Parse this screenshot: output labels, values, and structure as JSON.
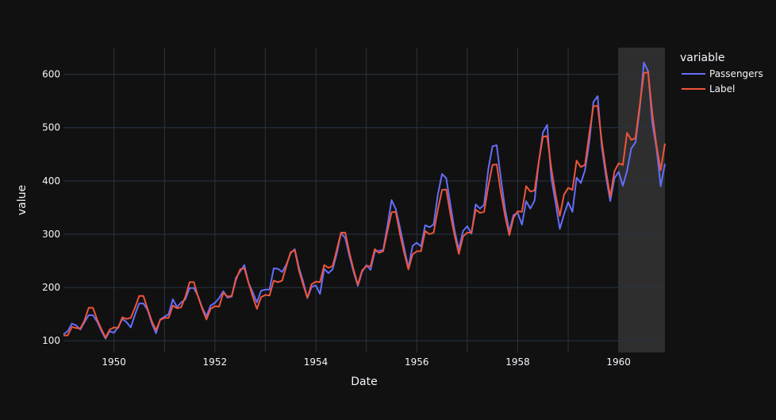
{
  "chart_data": {
    "type": "line",
    "title": "",
    "xlabel": "Date",
    "ylabel": "value",
    "xlim": [
      "1949-01",
      "1960-12"
    ],
    "ylim": [
      78,
      650
    ],
    "xticks": [
      "1950",
      "1952",
      "1954",
      "1956",
      "1958",
      "1960"
    ],
    "yticks": [
      100,
      200,
      300,
      400,
      500,
      600
    ],
    "grid": true,
    "legend": {
      "title": "variable",
      "placement": "right"
    },
    "highlight_region": {
      "start": "1960-01",
      "end": "1960-12",
      "color": "#2e2e2e"
    },
    "x_start": "1949-01",
    "x_frequency": "monthly",
    "series": [
      {
        "name": "Passengers",
        "color": "#636efa",
        "values": [
          112,
          118,
          132,
          129,
          121,
          135,
          148,
          148,
          136,
          119,
          104,
          118,
          115,
          126,
          141,
          135,
          125,
          149,
          170,
          170,
          158,
          133,
          114,
          140,
          145,
          150,
          178,
          163,
          172,
          178,
          199,
          199,
          184,
          162,
          146,
          166,
          171,
          180,
          193,
          181,
          183,
          218,
          230,
          242,
          209,
          191,
          172,
          194,
          196,
          196,
          236,
          235,
          229,
          243,
          264,
          272,
          237,
          211,
          180,
          201,
          204,
          188,
          235,
          227,
          234,
          264,
          302,
          293,
          259,
          229,
          203,
          229,
          242,
          233,
          267,
          269,
          270,
          315,
          364,
          347,
          312,
          274,
          237,
          278,
          284,
          277,
          317,
          313,
          318,
          374,
          413,
          405,
          355,
          306,
          271,
          306,
          315,
          301,
          356,
          348,
          355,
          422,
          465,
          467,
          404,
          347,
          305,
          336,
          340,
          318,
          362,
          348,
          363,
          435,
          491,
          505,
          404,
          359,
          310,
          337,
          360,
          342,
          406,
          396,
          420,
          472,
          548,
          559,
          463,
          407,
          362,
          405,
          417,
          391,
          419,
          461,
          472,
          535,
          622,
          606,
          508,
          461,
          390,
          432
        ]
      },
      {
        "name": "Label",
        "color": "#ef553b",
        "values": [
          110,
          110,
          126,
          124,
          123,
          138,
          162,
          162,
          140,
          122,
          106,
          121,
          125,
          124,
          144,
          141,
          143,
          162,
          184,
          184,
          160,
          137,
          120,
          139,
          143,
          143,
          166,
          161,
          163,
          183,
          210,
          210,
          183,
          160,
          140,
          160,
          165,
          164,
          190,
          183,
          184,
          214,
          234,
          236,
          209,
          183,
          160,
          182,
          186,
          185,
          213,
          210,
          213,
          240,
          266,
          270,
          232,
          205,
          181,
          206,
          211,
          210,
          242,
          237,
          240,
          271,
          303,
          303,
          265,
          233,
          205,
          232,
          240,
          240,
          272,
          265,
          268,
          305,
          341,
          342,
          300,
          265,
          234,
          262,
          268,
          268,
          306,
          300,
          303,
          346,
          383,
          384,
          337,
          297,
          263,
          296,
          303,
          303,
          346,
          340,
          342,
          390,
          430,
          431,
          378,
          334,
          298,
          331,
          343,
          342,
          390,
          380,
          382,
          436,
          483,
          484,
          423,
          374,
          334,
          374,
          387,
          383,
          438,
          426,
          430,
          488,
          540,
          541,
          473,
          418,
          370,
          418,
          433,
          430,
          490,
          477,
          480,
          541,
          602,
          604,
          527,
          466,
          420,
          470
        ]
      }
    ]
  }
}
